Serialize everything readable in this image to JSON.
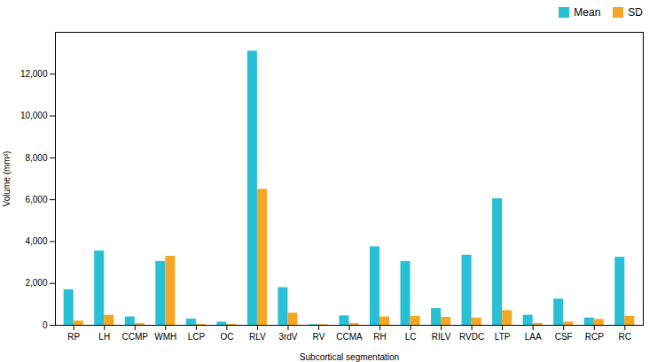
{
  "chart_data": {
    "type": "bar",
    "xlabel": "Subcortical segmentation",
    "ylabel": "Volume (mm³)",
    "categories": [
      "RP",
      "LH",
      "CCMP",
      "WMH",
      "LCP",
      "OC",
      "RLV",
      "3rdV",
      "RV",
      "CCMA",
      "RH",
      "LC",
      "RILV",
      "RVDC",
      "LTP",
      "LAA",
      "CSF",
      "RCP",
      "RC"
    ],
    "series": [
      {
        "name": "Mean",
        "color": "#29C0D6",
        "values": [
          1700,
          3550,
          400,
          3050,
          300,
          150,
          13100,
          1800,
          30,
          450,
          3750,
          3050,
          800,
          3350,
          6050,
          480,
          1250,
          350,
          3250
        ]
      },
      {
        "name": "SD",
        "color": "#F5A623",
        "values": [
          200,
          480,
          80,
          3300,
          50,
          50,
          6500,
          580,
          30,
          80,
          400,
          430,
          380,
          350,
          700,
          80,
          150,
          280,
          430
        ]
      }
    ],
    "ylim": [
      0,
      14000
    ],
    "yticks": [
      0,
      {
        "value": 2000,
        "label": "2,000"
      },
      {
        "value": 4000,
        "label": "4,000"
      },
      {
        "value": 6000,
        "label": "6,000"
      },
      {
        "value": 8000,
        "label": "8,000"
      },
      {
        "value": 10000,
        "label": "10,000"
      },
      {
        "value": 12000,
        "label": "12,000"
      }
    ],
    "grid": false,
    "legend": "upper right"
  }
}
